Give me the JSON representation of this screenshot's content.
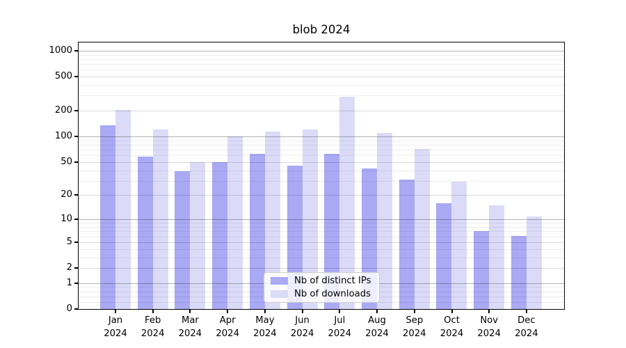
{
  "title": "blob 2024",
  "chart_data": {
    "type": "bar",
    "title": "blob 2024",
    "x_categories": [
      "Jan",
      "Feb",
      "Mar",
      "Apr",
      "May",
      "Jun",
      "Jul",
      "Aug",
      "Sep",
      "Oct",
      "Nov",
      "Dec"
    ],
    "x_year": "2024",
    "y_scale": "log1p",
    "y_ticks": [
      0,
      1,
      2,
      5,
      10,
      20,
      50,
      100,
      200,
      500,
      1000
    ],
    "y_range_top": 1250,
    "grid": true,
    "legend_position": "lower center",
    "series": [
      {
        "name": "Nb of distinct IPs",
        "color": "#a9a9f4",
        "values": [
          135,
          58,
          39,
          50,
          63,
          45,
          63,
          42,
          31,
          16,
          7,
          6
        ]
      },
      {
        "name": "Nb of downloads",
        "color": "#dbdbf8",
        "values": [
          205,
          121,
          50,
          100,
          114,
          121,
          291,
          110,
          71,
          29,
          15,
          11
        ]
      }
    ],
    "colors": {
      "background": "#ffffff",
      "spine": "#000000",
      "grid_major": "#b3b3b3",
      "grid_medium": "#d9d9d9",
      "grid_minor": "#ededed",
      "text": "#000000"
    }
  }
}
